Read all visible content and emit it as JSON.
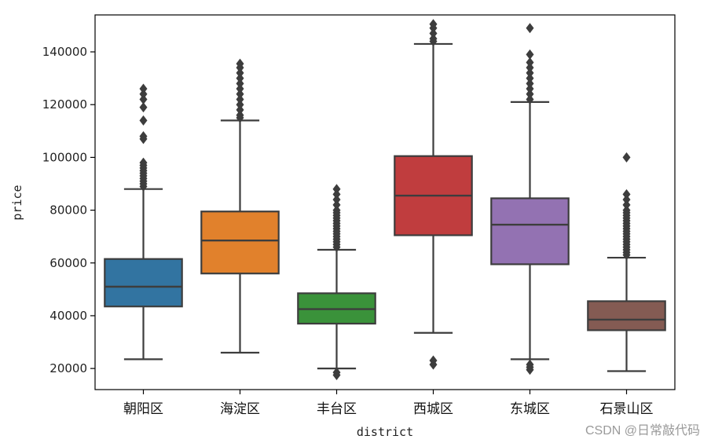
{
  "chart_data": {
    "type": "box",
    "xlabel": "district",
    "ylabel": "price",
    "ylim": [
      12000,
      154000
    ],
    "yticks": [
      20000,
      40000,
      60000,
      80000,
      100000,
      120000,
      140000
    ],
    "ytick_labels": [
      "20000",
      "40000",
      "60000",
      "80000",
      "100000",
      "120000",
      "140000"
    ],
    "grid": false,
    "categories": [
      "朝阳区",
      "海淀区",
      "丰台区",
      "西城区",
      "东城区",
      "石景山区"
    ],
    "boxes": [
      {
        "category": "朝阳区",
        "color": "#3274a1",
        "whisker_low": 23500,
        "q1": 43500,
        "median": 51000,
        "q3": 61500,
        "whisker_high": 88000,
        "outliers": [
          89000,
          90000,
          91000,
          92000,
          93000,
          94000,
          95000,
          96000,
          97000,
          98000,
          107000,
          108000,
          114000,
          119000,
          122000,
          124000,
          126000
        ]
      },
      {
        "category": "海淀区",
        "color": "#e1812c",
        "whisker_low": 26000,
        "q1": 56000,
        "median": 68500,
        "q3": 79500,
        "whisker_high": 114000,
        "outliers": [
          115000,
          116000,
          118000,
          120000,
          122000,
          124000,
          126000,
          128000,
          130000,
          132000,
          134000,
          135500
        ]
      },
      {
        "category": "丰台区",
        "color": "#3a923a",
        "whisker_low": 20000,
        "q1": 37000,
        "median": 42500,
        "q3": 48500,
        "whisker_high": 65000,
        "outliers": [
          17500,
          18500,
          66000,
          67000,
          68000,
          69000,
          70000,
          71000,
          72000,
          73000,
          74000,
          75000,
          76000,
          77000,
          78000,
          79000,
          80000,
          82000,
          84000,
          86000,
          88000
        ]
      },
      {
        "category": "西城区",
        "color": "#c03d3e",
        "whisker_low": 33500,
        "q1": 70500,
        "median": 85500,
        "q3": 100500,
        "whisker_high": 143000,
        "outliers": [
          21500,
          23000,
          144000,
          145000,
          147000,
          149000,
          150500
        ]
      },
      {
        "category": "东城区",
        "color": "#9372b2",
        "whisker_low": 23500,
        "q1": 59500,
        "median": 74500,
        "q3": 84500,
        "whisker_high": 121000,
        "outliers": [
          19500,
          20500,
          21500,
          122000,
          124000,
          126000,
          128000,
          130000,
          132000,
          134000,
          136000,
          139000,
          149000
        ]
      },
      {
        "category": "石景山区",
        "color": "#845b53",
        "whisker_low": 19000,
        "q1": 34500,
        "median": 38500,
        "q3": 45500,
        "whisker_high": 62000,
        "outliers": [
          63000,
          64000,
          65000,
          66000,
          67000,
          68000,
          69000,
          70000,
          71000,
          72000,
          73000,
          74000,
          75000,
          76000,
          77000,
          78000,
          79000,
          80000,
          82000,
          84000,
          86000,
          100000
        ]
      }
    ]
  },
  "watermark": "CSDN @日常敲代码"
}
